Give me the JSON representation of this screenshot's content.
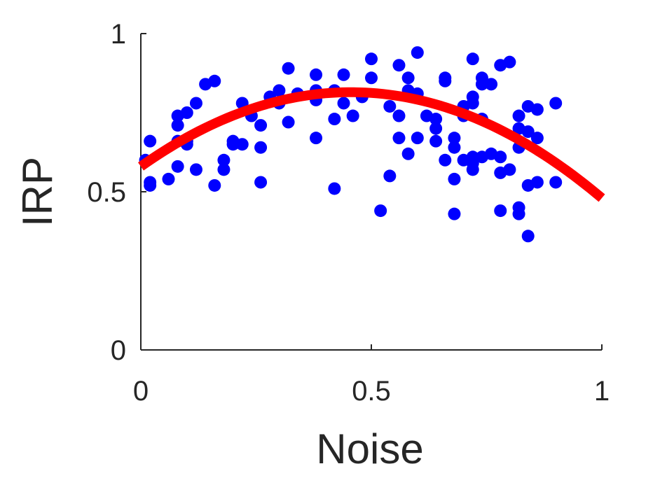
{
  "chart_data": {
    "type": "scatter",
    "xlabel": "Noise",
    "ylabel": "IRP",
    "xlim": [
      0,
      1
    ],
    "ylim": [
      0,
      1
    ],
    "xticks": [
      0,
      0.5,
      1
    ],
    "yticks": [
      0,
      0.5,
      1
    ],
    "xtick_labels": [
      "0",
      "0.5",
      "1"
    ],
    "ytick_labels": [
      "0",
      "0.5",
      "1"
    ],
    "grid": false,
    "point_color": "#0000ff",
    "fit_color": "#ff0000",
    "points": [
      [
        0.01,
        0.6
      ],
      [
        0.02,
        0.53
      ],
      [
        0.02,
        0.52
      ],
      [
        0.02,
        0.66
      ],
      [
        0.06,
        0.54
      ],
      [
        0.08,
        0.74
      ],
      [
        0.08,
        0.71
      ],
      [
        0.08,
        0.66
      ],
      [
        0.08,
        0.58
      ],
      [
        0.1,
        0.75
      ],
      [
        0.1,
        0.66
      ],
      [
        0.1,
        0.65
      ],
      [
        0.12,
        0.78
      ],
      [
        0.12,
        0.57
      ],
      [
        0.14,
        0.84
      ],
      [
        0.16,
        0.85
      ],
      [
        0.16,
        0.52
      ],
      [
        0.18,
        0.6
      ],
      [
        0.18,
        0.57
      ],
      [
        0.2,
        0.66
      ],
      [
        0.2,
        0.65
      ],
      [
        0.22,
        0.78
      ],
      [
        0.22,
        0.65
      ],
      [
        0.24,
        0.74
      ],
      [
        0.26,
        0.71
      ],
      [
        0.26,
        0.64
      ],
      [
        0.26,
        0.53
      ],
      [
        0.28,
        0.8
      ],
      [
        0.3,
        0.82
      ],
      [
        0.3,
        0.78
      ],
      [
        0.32,
        0.89
      ],
      [
        0.32,
        0.72
      ],
      [
        0.34,
        0.81
      ],
      [
        0.38,
        0.87
      ],
      [
        0.38,
        0.82
      ],
      [
        0.38,
        0.79
      ],
      [
        0.38,
        0.67
      ],
      [
        0.42,
        0.82
      ],
      [
        0.42,
        0.73
      ],
      [
        0.42,
        0.51
      ],
      [
        0.44,
        0.87
      ],
      [
        0.44,
        0.78
      ],
      [
        0.46,
        0.74
      ],
      [
        0.48,
        0.8
      ],
      [
        0.5,
        0.92
      ],
      [
        0.5,
        0.86
      ],
      [
        0.52,
        0.44
      ],
      [
        0.54,
        0.77
      ],
      [
        0.54,
        0.55
      ],
      [
        0.56,
        0.9
      ],
      [
        0.56,
        0.74
      ],
      [
        0.56,
        0.67
      ],
      [
        0.58,
        0.86
      ],
      [
        0.58,
        0.82
      ],
      [
        0.58,
        0.62
      ],
      [
        0.6,
        0.94
      ],
      [
        0.6,
        0.81
      ],
      [
        0.6,
        0.67
      ],
      [
        0.62,
        0.74
      ],
      [
        0.64,
        0.73
      ],
      [
        0.64,
        0.7
      ],
      [
        0.64,
        0.66
      ],
      [
        0.66,
        0.86
      ],
      [
        0.66,
        0.85
      ],
      [
        0.66,
        0.6
      ],
      [
        0.68,
        0.67
      ],
      [
        0.68,
        0.64
      ],
      [
        0.68,
        0.54
      ],
      [
        0.68,
        0.43
      ],
      [
        0.7,
        0.77
      ],
      [
        0.7,
        0.74
      ],
      [
        0.7,
        0.6
      ],
      [
        0.72,
        0.92
      ],
      [
        0.72,
        0.8
      ],
      [
        0.72,
        0.78
      ],
      [
        0.72,
        0.61
      ],
      [
        0.72,
        0.59
      ],
      [
        0.72,
        0.57
      ],
      [
        0.74,
        0.86
      ],
      [
        0.74,
        0.84
      ],
      [
        0.74,
        0.73
      ],
      [
        0.74,
        0.61
      ],
      [
        0.76,
        0.84
      ],
      [
        0.76,
        0.62
      ],
      [
        0.78,
        0.9
      ],
      [
        0.78,
        0.61
      ],
      [
        0.78,
        0.56
      ],
      [
        0.78,
        0.44
      ],
      [
        0.8,
        0.91
      ],
      [
        0.8,
        0.57
      ],
      [
        0.82,
        0.74
      ],
      [
        0.82,
        0.7
      ],
      [
        0.82,
        0.64
      ],
      [
        0.82,
        0.45
      ],
      [
        0.82,
        0.43
      ],
      [
        0.84,
        0.77
      ],
      [
        0.84,
        0.69
      ],
      [
        0.84,
        0.52
      ],
      [
        0.84,
        0.36
      ],
      [
        0.86,
        0.76
      ],
      [
        0.86,
        0.67
      ],
      [
        0.86,
        0.53
      ],
      [
        0.9,
        0.78
      ],
      [
        0.9,
        0.53
      ]
    ],
    "fit_line": {
      "type": "quadratic",
      "coefficients": {
        "a": -1.13,
        "b": 1.03,
        "c": 0.58
      },
      "x_range": [
        0,
        1
      ]
    }
  }
}
